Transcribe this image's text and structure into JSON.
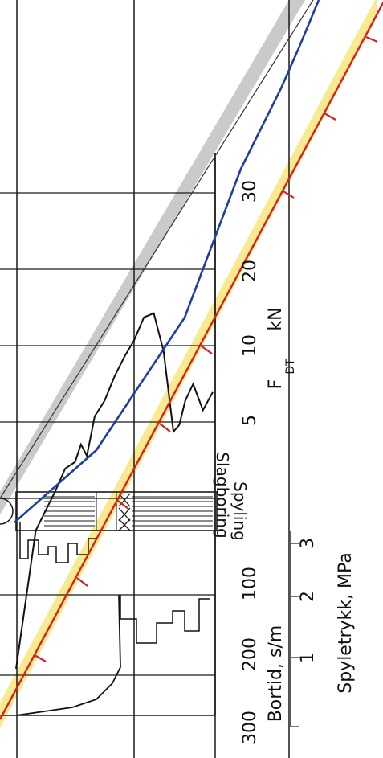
{
  "chart_data": {
    "type": "line",
    "title": "",
    "colors": {
      "grid": "#1a1a1a",
      "sounding_trace": "#111111",
      "blue_line": "#1f3fa0",
      "red_line": "#d42020",
      "yellow_band": "#f7e36a",
      "grey_band": "#9e9e9e"
    },
    "axes": [
      {
        "id": "force",
        "label": "F",
        "subscript": "DT",
        "unit": "kN",
        "ticks": [
          "5",
          "10",
          "20",
          "30"
        ]
      },
      {
        "id": "bortid",
        "label": "Bortid, s/m",
        "ticks": [
          "300",
          "200",
          "100"
        ]
      },
      {
        "id": "spyletrykk",
        "label": "Spyletrykk, MPa",
        "ticks": [
          "1",
          "2",
          "3"
        ]
      }
    ],
    "legend_labels": [
      "Spyling",
      "Slagboring"
    ],
    "series": [
      {
        "id": "force-trace",
        "points": [
          {
            "depth": 0,
            "force": 0.5
          },
          {
            "depth": 1,
            "force": 1.8
          },
          {
            "depth": 2,
            "force": 2.6
          },
          {
            "depth": 2.5,
            "force": 3.2
          },
          {
            "depth": 3,
            "force": 3.4
          },
          {
            "depth": 3.3,
            "force": 4.0
          },
          {
            "depth": 3.6,
            "force": 3.6
          },
          {
            "depth": 4,
            "force": 5.2
          },
          {
            "depth": 4.5,
            "force": 6.0
          },
          {
            "depth": 5,
            "force": 7.5
          },
          {
            "depth": 5.5,
            "force": 9.0
          },
          {
            "depth": 6,
            "force": 10.5
          },
          {
            "depth": 6.5,
            "force": 13.0
          },
          {
            "depth": 7,
            "force": 13.5
          },
          {
            "depth": 7.5,
            "force": 9.5
          },
          {
            "depth": 8,
            "force": 4.5
          },
          {
            "depth": 8.3,
            "force": 4.8
          },
          {
            "depth": 8.6,
            "force": 6.0
          },
          {
            "depth": 9,
            "force": 7.0
          },
          {
            "depth": 9.5,
            "force": 5.5
          },
          {
            "depth": 10,
            "force": 6.5
          }
        ]
      }
    ]
  }
}
